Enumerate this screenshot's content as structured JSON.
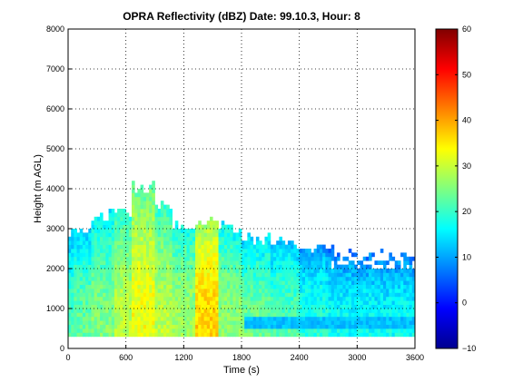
{
  "chart_data": {
    "type": "heatmap",
    "title": "OPRA Reflectivity (dBZ)  Date: 99.10.3, Hour: 8",
    "xlabel": "Time (s)",
    "ylabel": "Height (m AGL)",
    "xlim": [
      0,
      3600
    ],
    "ylim": [
      0,
      8000
    ],
    "xticks": [
      0,
      600,
      1200,
      1800,
      2400,
      3000,
      3600
    ],
    "yticks": [
      0,
      1000,
      2000,
      3000,
      4000,
      5000,
      6000,
      7000,
      8000
    ],
    "grid": true,
    "grid_style": "dotted",
    "colorbar": {
      "label": "",
      "colormap": "jet",
      "range": [
        -10,
        60
      ],
      "ticks": [
        -10,
        0,
        10,
        20,
        30,
        40,
        50,
        60
      ]
    },
    "echo_columns": [
      {
        "x_start": 0,
        "x_end": 60,
        "top": 2900,
        "bottom": 300,
        "core_dbz": 21
      },
      {
        "x_start": 60,
        "x_end": 240,
        "top": 2950,
        "bottom": 300,
        "core_dbz": 23
      },
      {
        "x_start": 240,
        "x_end": 480,
        "top": 3300,
        "bottom": 300,
        "core_dbz": 25
      },
      {
        "x_start": 480,
        "x_end": 660,
        "top": 3400,
        "bottom": 300,
        "core_dbz": 29
      },
      {
        "x_start": 660,
        "x_end": 900,
        "top": 4000,
        "bottom": 300,
        "core_dbz": 33
      },
      {
        "x_start": 900,
        "x_end": 1080,
        "top": 3500,
        "bottom": 300,
        "core_dbz": 29
      },
      {
        "x_start": 1080,
        "x_end": 1320,
        "top": 3000,
        "bottom": 300,
        "core_dbz": 27
      },
      {
        "x_start": 1320,
        "x_end": 1560,
        "top": 3100,
        "bottom": 300,
        "core_dbz": 37
      },
      {
        "x_start": 1560,
        "x_end": 1800,
        "top": 3000,
        "bottom": 300,
        "core_dbz": 26
      },
      {
        "x_start": 1800,
        "x_end": 2100,
        "top": 2700,
        "bottom": 300,
        "core_dbz": 24
      },
      {
        "x_start": 2100,
        "x_end": 2400,
        "top": 2600,
        "bottom": 300,
        "core_dbz": 22
      },
      {
        "x_start": 2400,
        "x_end": 2700,
        "top": 2500,
        "bottom": 300,
        "core_dbz": 19
      },
      {
        "x_start": 2700,
        "x_end": 3000,
        "top": 2400,
        "bottom": 300,
        "core_dbz": 17
      },
      {
        "x_start": 3000,
        "x_end": 3300,
        "top": 2300,
        "bottom": 300,
        "core_dbz": 17
      },
      {
        "x_start": 3300,
        "x_end": 3600,
        "top": 2300,
        "bottom": 300,
        "core_dbz": 17
      }
    ],
    "low_level_band": {
      "bottom": 500,
      "top": 800,
      "dbz": 12
    }
  }
}
